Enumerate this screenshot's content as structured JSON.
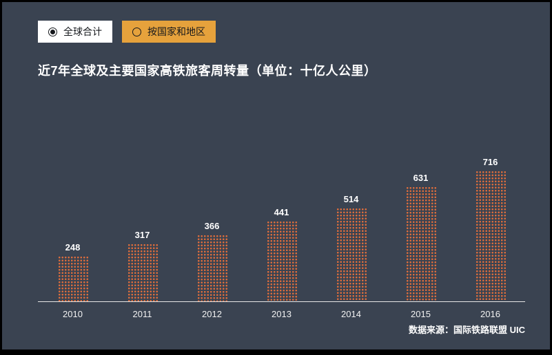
{
  "theme": {
    "background": "#3a4351",
    "bar_color": "#e06e3c",
    "selected_button_bg": "#ffffff",
    "unselected_button_bg": "#e6a23c",
    "text_color": "#ffffff"
  },
  "toggles": [
    {
      "label": "全球合计",
      "selected": true
    },
    {
      "label": "按国家和地区",
      "selected": false
    }
  ],
  "title": "近7年全球及主要国家高铁旅客周转量（单位：十亿人公里）",
  "source": "数据来源：国际铁路联盟  UIC",
  "chart_data": {
    "type": "bar",
    "categories": [
      "2010",
      "2011",
      "2012",
      "2013",
      "2014",
      "2015",
      "2016"
    ],
    "values": [
      248,
      317,
      366,
      441,
      514,
      631,
      716
    ],
    "title": "近7年全球及主要国家高铁旅客周转量（单位：十亿人公里）",
    "xlabel": "",
    "ylabel": "",
    "ylim": [
      0,
      750
    ],
    "unit": "十亿人公里",
    "grid": false,
    "legend": "none",
    "bar_style": "dotted-texture"
  }
}
